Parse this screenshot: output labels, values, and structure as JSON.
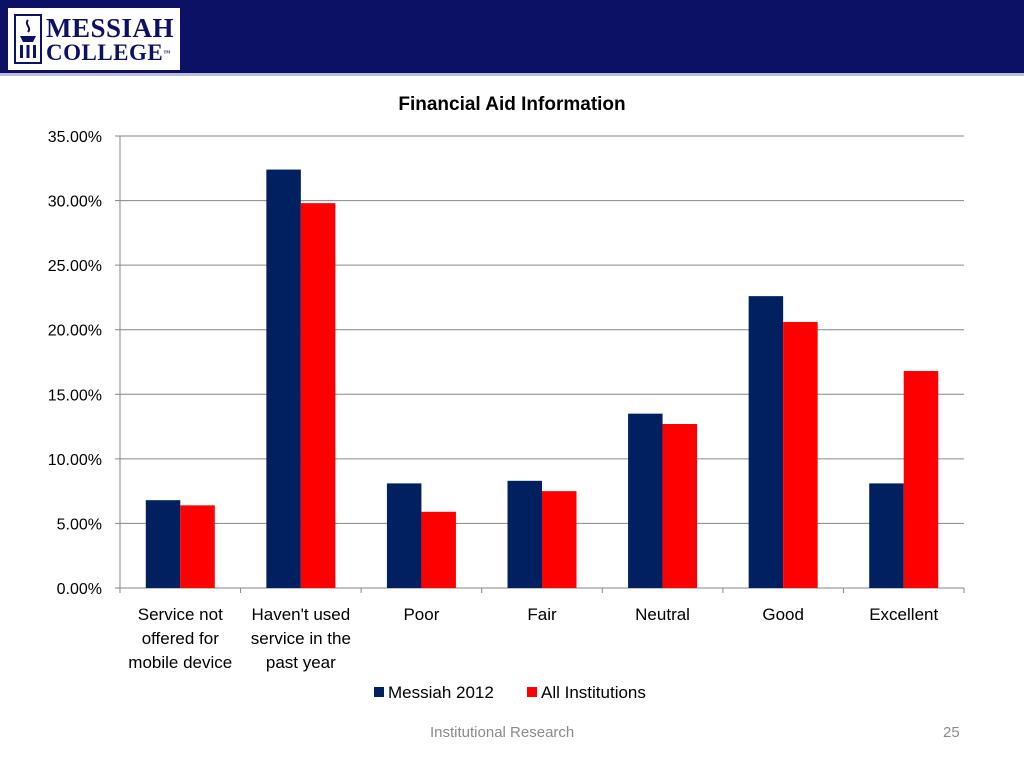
{
  "header": {
    "logo_line1": "MESSIAH",
    "logo_line2": "COLLEGE",
    "logo_tm": "™",
    "bar_color": "#0d1166"
  },
  "chart_data": {
    "type": "bar",
    "title": "Financial Aid Information",
    "categories": [
      [
        "Service not",
        "offered for",
        "mobile device"
      ],
      [
        "Haven't used",
        "service in the",
        "past year"
      ],
      [
        "Poor"
      ],
      [
        "Fair"
      ],
      [
        "Neutral"
      ],
      [
        "Good"
      ],
      [
        "Excellent"
      ]
    ],
    "series": [
      {
        "name": "Messiah 2012",
        "color": "#002060",
        "values": [
          6.8,
          32.4,
          8.1,
          8.3,
          13.5,
          22.6,
          8.1
        ]
      },
      {
        "name": "All Institutions",
        "color": "#ff0000",
        "values": [
          6.4,
          29.8,
          5.9,
          7.5,
          12.7,
          20.6,
          16.8
        ]
      }
    ],
    "ylim": [
      0,
      35
    ],
    "yticks": [
      "0.00%",
      "5.00%",
      "10.00%",
      "15.00%",
      "20.00%",
      "25.00%",
      "30.00%",
      "35.00%"
    ],
    "y_step": 5,
    "grid": true,
    "legend": "bottom"
  },
  "footer": {
    "center_text": "Institutional Research",
    "page_number": "25"
  }
}
